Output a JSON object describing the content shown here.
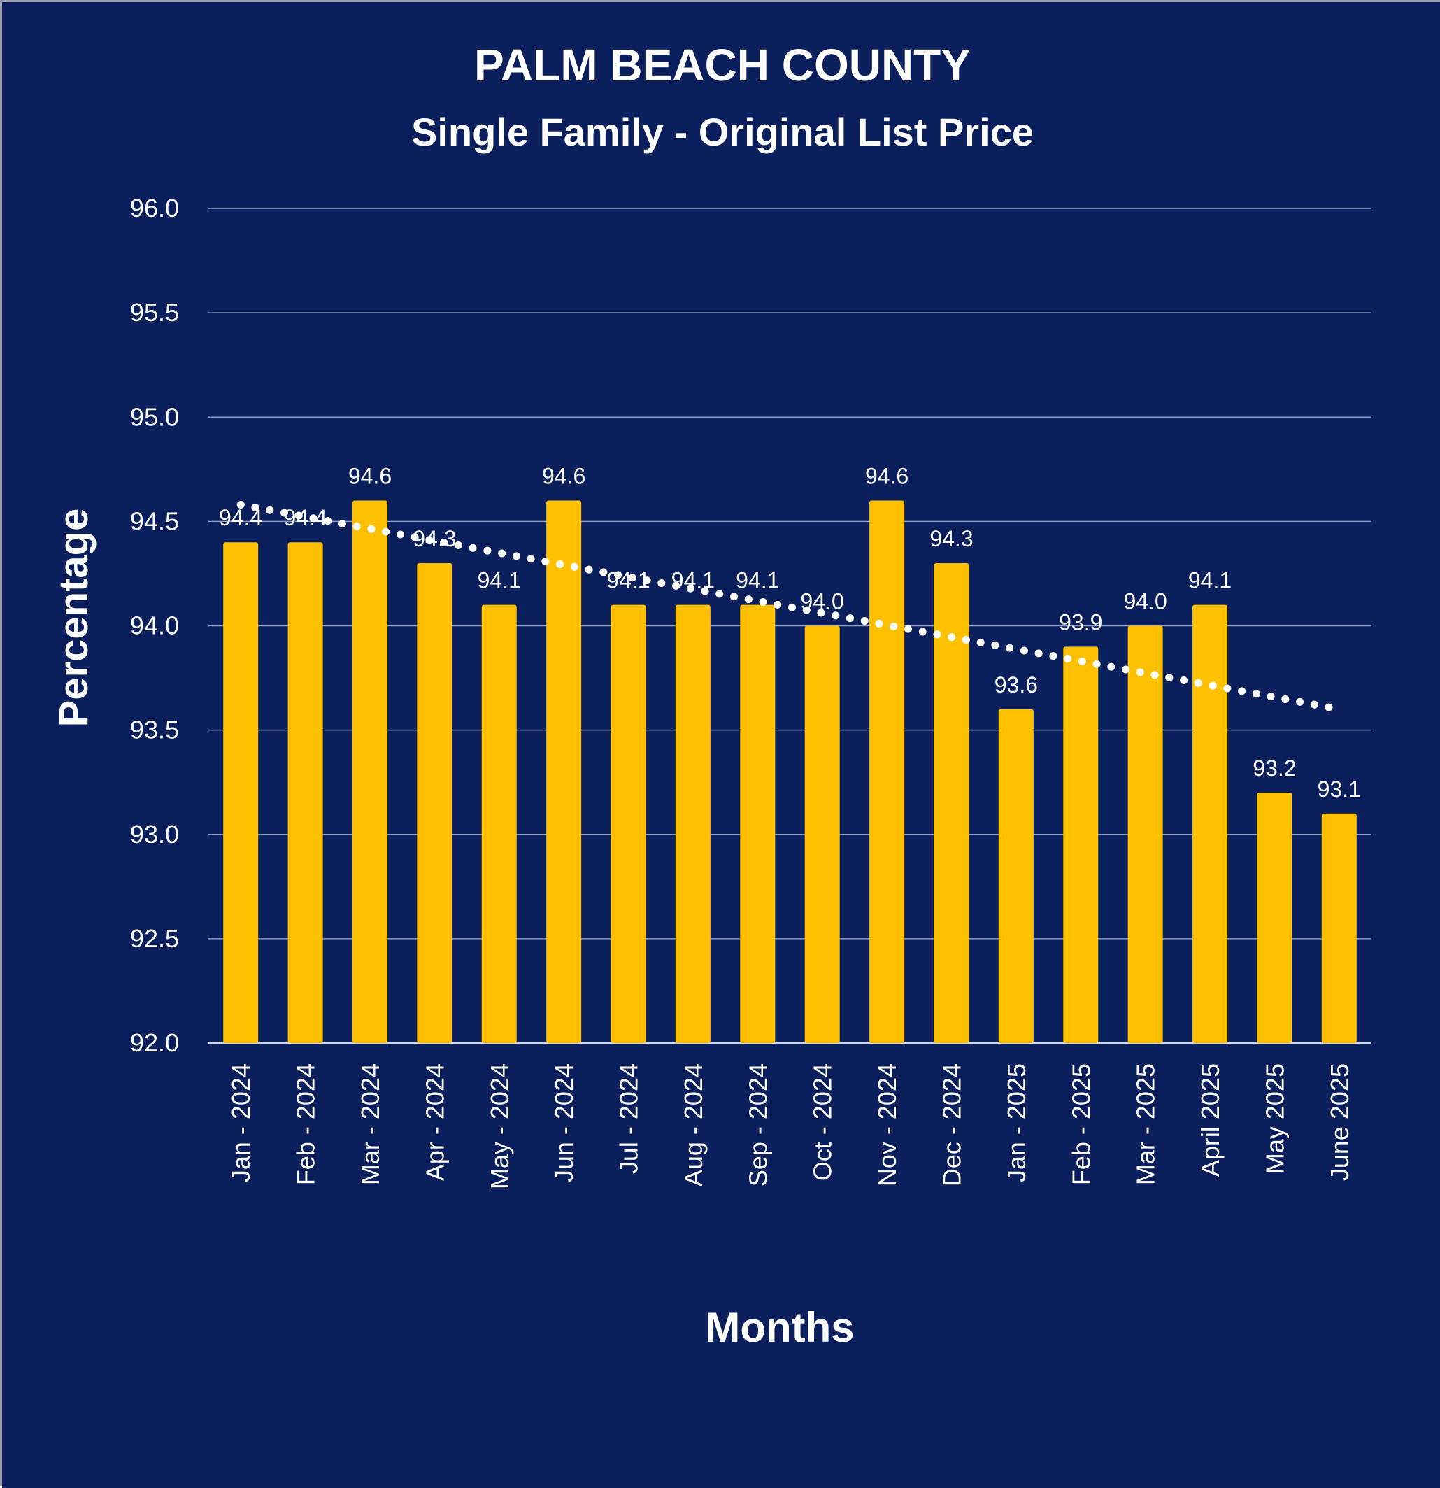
{
  "chart_data": {
    "type": "bar",
    "title": "PALM BEACH COUNTY",
    "subtitle": "Single Family - Original List Price",
    "xlabel": "Months",
    "ylabel": "Percentage",
    "ylim": [
      92.0,
      96.0
    ],
    "yticks": [
      "96.0",
      "95.5",
      "95.0",
      "94.5",
      "94.0",
      "93.5",
      "93.0",
      "92.5",
      "92.0"
    ],
    "ytick_values": [
      96.0,
      95.5,
      95.0,
      94.5,
      94.0,
      93.5,
      93.0,
      92.5,
      92.0
    ],
    "grid": true,
    "categories": [
      "Jan - 2024",
      "Feb - 2024",
      "Mar - 2024",
      "Apr - 2024",
      "May - 2024",
      "Jun - 2024",
      "Jul - 2024",
      "Aug - 2024",
      "Sep - 2024",
      "Oct - 2024",
      "Nov - 2024",
      "Dec - 2024",
      "Jan - 2025",
      "Feb - 2025",
      "Mar - 2025",
      "April 2025",
      "May 2025",
      "June 2025"
    ],
    "values": [
      94.4,
      94.4,
      94.6,
      94.3,
      94.1,
      94.6,
      94.1,
      94.1,
      94.1,
      94.0,
      94.6,
      94.3,
      93.6,
      93.9,
      94.0,
      94.1,
      93.2,
      93.1
    ],
    "data_labels": [
      "94.4",
      "94.4",
      "94.6",
      "94.3",
      "94.1",
      "94.6",
      "94.1",
      "94.1",
      "94.1",
      "94.0",
      "94.6",
      "94.3",
      "93.6",
      "93.9",
      "94.0",
      "94.1",
      "93.2",
      "93.1"
    ],
    "trendline": {
      "type": "linear",
      "style": "dotted",
      "start_value": 94.58,
      "end_value": 93.6
    },
    "colors": {
      "background": "#0a1f5c",
      "bar": "#ffc000",
      "gridline": "#8e9ac0",
      "axis_line": "#d0d6e6",
      "text": "#ffffff",
      "trendline": "#ffffff"
    }
  }
}
